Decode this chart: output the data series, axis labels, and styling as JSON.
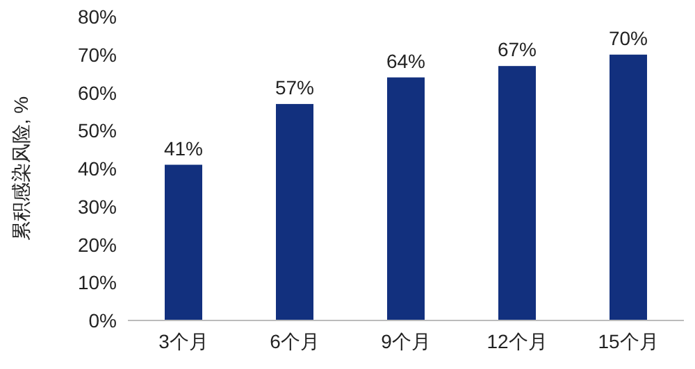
{
  "chart_data": {
    "type": "bar",
    "ylabel": "累积感染风险, %",
    "categories": [
      "3个月",
      "6个月",
      "9个月",
      "12个月",
      "15个月"
    ],
    "values": [
      41,
      57,
      64,
      67,
      70
    ],
    "value_labels": [
      "41%",
      "57%",
      "64%",
      "67%",
      "70%"
    ],
    "color": "#12307e",
    "ylim": [
      0,
      80
    ],
    "yticks": [
      {
        "value": 0,
        "label": "0%"
      },
      {
        "value": 10,
        "label": "10%"
      },
      {
        "value": 20,
        "label": "20%"
      },
      {
        "value": 30,
        "label": "30%"
      },
      {
        "value": 40,
        "label": "40%"
      },
      {
        "value": 50,
        "label": "50%"
      },
      {
        "value": 60,
        "label": "60%"
      },
      {
        "value": 70,
        "label": "70%"
      },
      {
        "value": 80,
        "label": "80%"
      }
    ],
    "grid": false
  }
}
